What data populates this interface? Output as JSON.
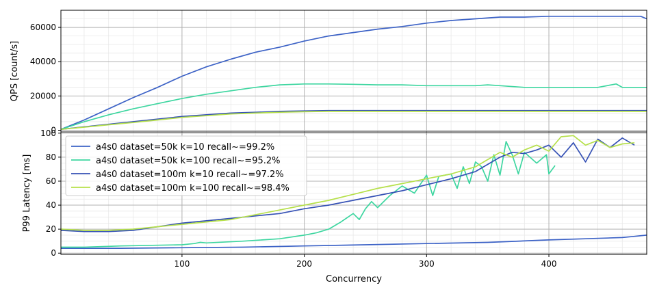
{
  "chart_data": [
    {
      "type": "line",
      "title": "",
      "xlabel": "",
      "ylabel": "QPS [count/s]",
      "xlim": [
        1,
        480
      ],
      "ylim": [
        -1000,
        70000
      ],
      "xticks": [
        100,
        200,
        300,
        400
      ],
      "yticks": [
        0,
        20000,
        40000,
        60000
      ],
      "grid": true,
      "legend": "none",
      "series": [
        {
          "name": "a4s0 dataset=50k k=10 recall~=99.2%",
          "color": "#3c62c6",
          "points": [
            [
              1,
              500
            ],
            [
              20,
              6000
            ],
            [
              40,
              12500
            ],
            [
              60,
              19000
            ],
            [
              80,
              25000
            ],
            [
              100,
              31500
            ],
            [
              120,
              37000
            ],
            [
              140,
              41500
            ],
            [
              160,
              45500
            ],
            [
              180,
              48500
            ],
            [
              200,
              52000
            ],
            [
              220,
              55000
            ],
            [
              240,
              57000
            ],
            [
              260,
              59000
            ],
            [
              280,
              60500
            ],
            [
              300,
              62500
            ],
            [
              320,
              64000
            ],
            [
              340,
              65000
            ],
            [
              360,
              66000
            ],
            [
              380,
              66000
            ],
            [
              400,
              66500
            ],
            [
              420,
              66500
            ],
            [
              440,
              66500
            ],
            [
              460,
              66500
            ],
            [
              470,
              66500
            ],
            [
              475,
              66500
            ],
            [
              480,
              65000
            ]
          ]
        },
        {
          "name": "a4s0 dataset=50k k=100 recall~=95.2%",
          "color": "#3ed6a0",
          "points": [
            [
              1,
              500
            ],
            [
              20,
              5000
            ],
            [
              40,
              9000
            ],
            [
              60,
              12500
            ],
            [
              80,
              15500
            ],
            [
              100,
              18500
            ],
            [
              120,
              21000
            ],
            [
              140,
              23000
            ],
            [
              160,
              25000
            ],
            [
              180,
              26500
            ],
            [
              200,
              27000
            ],
            [
              220,
              27000
            ],
            [
              240,
              26800
            ],
            [
              260,
              26500
            ],
            [
              280,
              26500
            ],
            [
              300,
              26000
            ],
            [
              320,
              26000
            ],
            [
              340,
              26000
            ],
            [
              350,
              26500
            ],
            [
              360,
              26000
            ],
            [
              380,
              25000
            ],
            [
              400,
              25000
            ],
            [
              420,
              25000
            ],
            [
              440,
              25000
            ],
            [
              455,
              27000
            ],
            [
              460,
              25000
            ],
            [
              480,
              25000
            ]
          ]
        },
        {
          "name": "a4s0 dataset=100m k=10 recall~=97.2%",
          "color": "#3551b5",
          "points": [
            [
              1,
              500
            ],
            [
              20,
              2000
            ],
            [
              40,
              3500
            ],
            [
              60,
              5000
            ],
            [
              80,
              6500
            ],
            [
              100,
              8000
            ],
            [
              120,
              9000
            ],
            [
              140,
              10000
            ],
            [
              160,
              10500
            ],
            [
              180,
              11000
            ],
            [
              200,
              11300
            ],
            [
              220,
              11500
            ],
            [
              240,
              11500
            ],
            [
              260,
              11500
            ],
            [
              280,
              11500
            ],
            [
              300,
              11500
            ],
            [
              320,
              11500
            ],
            [
              340,
              11500
            ],
            [
              360,
              11500
            ],
            [
              380,
              11500
            ],
            [
              400,
              11500
            ],
            [
              420,
              11500
            ],
            [
              440,
              11500
            ],
            [
              460,
              11500
            ],
            [
              480,
              11500
            ]
          ]
        },
        {
          "name": "a4s0 dataset=100m k=100 recall~=98.4%",
          "color": "#b6e04a",
          "points": [
            [
              1,
              500
            ],
            [
              20,
              1800
            ],
            [
              40,
              3200
            ],
            [
              60,
              4500
            ],
            [
              80,
              6000
            ],
            [
              100,
              7500
            ],
            [
              120,
              8500
            ],
            [
              140,
              9500
            ],
            [
              160,
              10000
            ],
            [
              180,
              10500
            ],
            [
              200,
              10800
            ],
            [
              220,
              11000
            ],
            [
              240,
              11000
            ],
            [
              260,
              11000
            ],
            [
              280,
              11000
            ],
            [
              300,
              11000
            ],
            [
              320,
              11000
            ],
            [
              340,
              11000
            ],
            [
              360,
              11000
            ],
            [
              380,
              11000
            ],
            [
              400,
              11000
            ],
            [
              420,
              11000
            ],
            [
              440,
              11000
            ],
            [
              460,
              11000
            ],
            [
              480,
              11000
            ]
          ]
        }
      ]
    },
    {
      "type": "line",
      "title": "",
      "xlabel": "Concurrency",
      "ylabel": "P99 Latency [ms]",
      "xlim": [
        1,
        480
      ],
      "ylim": [
        -1,
        101
      ],
      "xticks": [
        100,
        200,
        300,
        400
      ],
      "yticks": [
        0,
        20,
        40,
        60,
        80,
        100
      ],
      "grid": true,
      "legend": "top-left",
      "series": [
        {
          "name": "a4s0 dataset=50k k=10 recall~=99.2%",
          "color": "#3c62c6",
          "points": [
            [
              1,
              4
            ],
            [
              20,
              4
            ],
            [
              50,
              4
            ],
            [
              100,
              4.5
            ],
            [
              150,
              5
            ],
            [
              200,
              6
            ],
            [
              250,
              7
            ],
            [
              300,
              8
            ],
            [
              350,
              9
            ],
            [
              400,
              11
            ],
            [
              430,
              12
            ],
            [
              460,
              13
            ],
            [
              470,
              14
            ],
            [
              480,
              15
            ]
          ]
        },
        {
          "name": "a4s0 dataset=50k k=100 recall~=95.2%",
          "color": "#3ed6a0",
          "points": [
            [
              1,
              5
            ],
            [
              20,
              5
            ],
            [
              50,
              6
            ],
            [
              100,
              7
            ],
            [
              110,
              8
            ],
            [
              115,
              9
            ],
            [
              120,
              8.5
            ],
            [
              150,
              10
            ],
            [
              180,
              12
            ],
            [
              200,
              15
            ],
            [
              210,
              17
            ],
            [
              220,
              20
            ],
            [
              230,
              26
            ],
            [
              240,
              33
            ],
            [
              245,
              28
            ],
            [
              250,
              37
            ],
            [
              255,
              43
            ],
            [
              260,
              38
            ],
            [
              270,
              48
            ],
            [
              280,
              56
            ],
            [
              290,
              50
            ],
            [
              300,
              65
            ],
            [
              305,
              48
            ],
            [
              310,
              64
            ],
            [
              320,
              66
            ],
            [
              325,
              54
            ],
            [
              330,
              72
            ],
            [
              335,
              58
            ],
            [
              340,
              76
            ],
            [
              345,
              72
            ],
            [
              350,
              60
            ],
            [
              355,
              82
            ],
            [
              360,
              65
            ],
            [
              365,
              93
            ],
            [
              370,
              82
            ],
            [
              375,
              66
            ],
            [
              380,
              84
            ],
            [
              390,
              75
            ],
            [
              398,
              82
            ],
            [
              400,
              66
            ],
            [
              405,
              73
            ]
          ]
        },
        {
          "name": "a4s0 dataset=100m k=10 recall~=97.2%",
          "color": "#3551b5",
          "points": [
            [
              1,
              19
            ],
            [
              20,
              18
            ],
            [
              40,
              18
            ],
            [
              60,
              19
            ],
            [
              80,
              22
            ],
            [
              100,
              25
            ],
            [
              120,
              27
            ],
            [
              140,
              29
            ],
            [
              160,
              31
            ],
            [
              180,
              33
            ],
            [
              200,
              37
            ],
            [
              220,
              40
            ],
            [
              240,
              44
            ],
            [
              260,
              48
            ],
            [
              280,
              52
            ],
            [
              300,
              57
            ],
            [
              320,
              62
            ],
            [
              340,
              68
            ],
            [
              350,
              74
            ],
            [
              360,
              80
            ],
            [
              370,
              84
            ],
            [
              380,
              83
            ],
            [
              390,
              86
            ],
            [
              400,
              90
            ],
            [
              410,
              80
            ],
            [
              420,
              92
            ],
            [
              430,
              76
            ],
            [
              440,
              95
            ],
            [
              450,
              88
            ],
            [
              460,
              96
            ],
            [
              470,
              90
            ]
          ]
        },
        {
          "name": "a4s0 dataset=100m k=100 recall~=98.4%",
          "color": "#b6e04a",
          "points": [
            [
              1,
              20
            ],
            [
              20,
              19
            ],
            [
              40,
              19
            ],
            [
              60,
              20
            ],
            [
              80,
              22
            ],
            [
              100,
              24
            ],
            [
              120,
              26
            ],
            [
              140,
              28
            ],
            [
              160,
              32
            ],
            [
              180,
              36
            ],
            [
              200,
              40
            ],
            [
              220,
              44
            ],
            [
              240,
              49
            ],
            [
              260,
              54
            ],
            [
              280,
              58
            ],
            [
              300,
              62
            ],
            [
              320,
              66
            ],
            [
              340,
              72
            ],
            [
              350,
              78
            ],
            [
              360,
              84
            ],
            [
              370,
              80
            ],
            [
              380,
              86
            ],
            [
              390,
              90
            ],
            [
              400,
              85
            ],
            [
              410,
              97
            ],
            [
              420,
              98
            ],
            [
              430,
              90
            ],
            [
              440,
              94
            ],
            [
              450,
              88
            ],
            [
              460,
              91
            ],
            [
              470,
              92
            ]
          ]
        }
      ]
    }
  ]
}
